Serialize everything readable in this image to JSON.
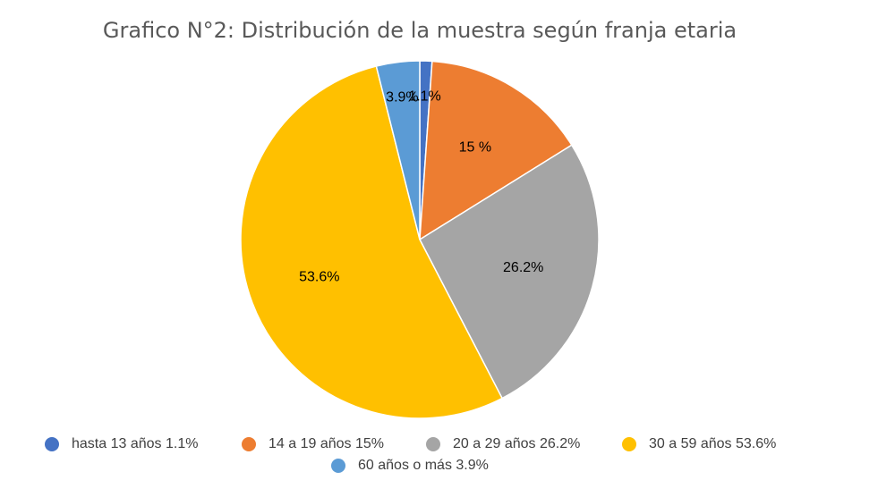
{
  "chart_data": {
    "type": "pie",
    "title": "Grafico N°2: Distribución de la muestra según franja etaria",
    "categories": [
      "hasta 13 años 1.1%",
      "14 a 19 años 15%",
      "20 a 29 años 26.2%",
      "30 a 59 años 53.6%",
      "60 años o más 3.9%"
    ],
    "values": [
      1.1,
      15,
      26.2,
      53.6,
      3.9
    ],
    "value_labels": [
      "1.1%",
      "15 %",
      "26.2%",
      "53.6%",
      "3.9%"
    ],
    "colors": [
      "#4472c4",
      "#ed7d31",
      "#a5a5a5",
      "#ffc000",
      "#5b9bd5"
    ]
  }
}
